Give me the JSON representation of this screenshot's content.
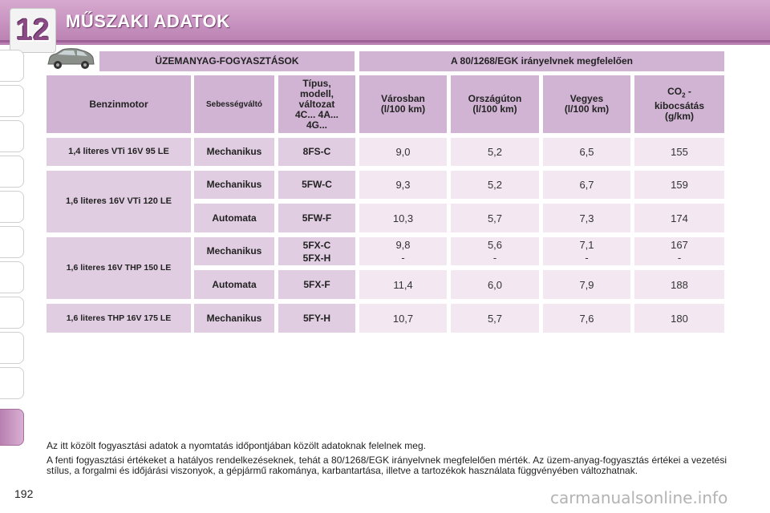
{
  "header": {
    "chapter_number": "12",
    "title": "MŰSZAKI ADATOK"
  },
  "table": {
    "band_left": "ÜZEMANYAG-FOGYASZTÁSOK",
    "band_right": "A 80/1268/EGK irányelvnek megfelelően",
    "columns": {
      "engine": "Benzinmotor",
      "gearbox": "Sebességváltó",
      "type": "Típus,\nmodell,\nváltozat\n4C... 4A...\n4G...",
      "urban": "Városban\n(l/100 km)",
      "extra_urban": "Országúton\n(l/100 km)",
      "combined": "Vegyes\n(l/100 km)",
      "co2_main": "CO",
      "co2_sub": "2",
      "co2_rest": " -\nkibocsátás\n(g/km)"
    },
    "rows": [
      {
        "engine": "1,4 literes VTi 16V 95 LE",
        "gearbox": "Mechanikus",
        "type": "8FS-C",
        "urban": "9,0",
        "extra": "5,2",
        "combined": "6,5",
        "co2": "155"
      },
      {
        "engine": "1,6 literes 16V VTi 120 LE",
        "gearbox": "Mechanikus",
        "type": "5FW-C",
        "urban": "9,3",
        "extra": "5,2",
        "combined": "6,7",
        "co2": "159"
      },
      {
        "gearbox": "Automata",
        "type": "5FW-F",
        "urban": "10,3",
        "extra": "5,7",
        "combined": "7,3",
        "co2": "174"
      },
      {
        "engine": "1,6 literes 16V THP 150 LE",
        "gearbox": "Mechanikus",
        "type": "5FX-C\n5FX-H",
        "urban": "9,8\n-",
        "extra": "5,6\n-",
        "combined": "7,1\n-",
        "co2": "167\n-"
      },
      {
        "gearbox": "Automata",
        "type": "5FX-F",
        "urban": "11,4",
        "extra": "6,0",
        "combined": "7,9",
        "co2": "188"
      },
      {
        "engine": "1,6 literes THP 16V 175 LE",
        "gearbox": "Mechanikus",
        "type": "5FY-H",
        "urban": "10,7",
        "extra": "5,7",
        "combined": "7,6",
        "co2": "180"
      }
    ]
  },
  "notes": [
    "Az itt közölt fogyasztási adatok a nyomtatás időpontjában közölt adatoknak felelnek meg.",
    "A fenti fogyasztási értékeket a hatályos rendelkezéseknek, tehát a 80/1268/EGK irányelvnek megfelelően mérték. Az üzem-anyag-fogyasztás értékei a vezetési stílus, a forgalmi és időjárási viszonyok, a gépjármű rakománya, karbantartása, illetve a tartozékok használata függvényében változhatnak."
  ],
  "page_number": "192",
  "watermark": "carmanualsonline.info",
  "colors": {
    "accent": "#c58fbd",
    "header_cell": "#d1b4d3",
    "label_cell": "#e1cde2",
    "value_cell": "#f3e7f1"
  },
  "icons": {
    "car": "car-icon"
  }
}
